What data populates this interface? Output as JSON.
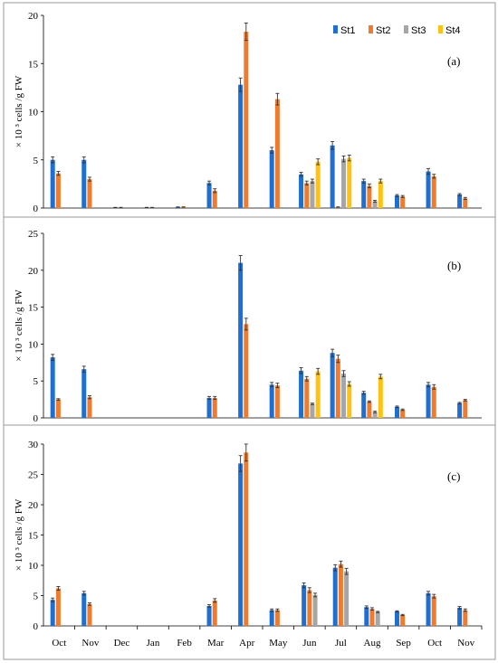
{
  "colors": {
    "St1": "#1f6fd1",
    "St2": "#f07b2c",
    "St3": "#a6a6a6",
    "St4": "#ffc20e"
  },
  "chart_data": [
    {
      "type": "bar",
      "panel": "(a)",
      "ylabel": "× 10 ³ cells /g FW",
      "ylim": [
        0,
        20
      ],
      "yticks": [
        0,
        5,
        10,
        15,
        20
      ],
      "legend": {
        "placement": "top-right",
        "entries": [
          "St1",
          "St2",
          "St3",
          "St4"
        ]
      },
      "categories": [
        "Oct",
        "Nov",
        "Dec",
        "Jan",
        "Feb",
        "Mar",
        "Apr",
        "May",
        "Jun",
        "Jul",
        "Aug",
        "Sep",
        "Oct",
        "Nov"
      ],
      "series": [
        {
          "name": "St1",
          "values": [
            5.0,
            5.0,
            0.05,
            0.05,
            0.1,
            2.6,
            12.8,
            6.0,
            3.5,
            6.5,
            2.8,
            1.3,
            3.8,
            1.4
          ],
          "errors": [
            0.3,
            0.3,
            0.02,
            0.02,
            0.02,
            0.2,
            0.7,
            0.3,
            0.2,
            0.4,
            0.2,
            0.1,
            0.3,
            0.1
          ]
        },
        {
          "name": "St2",
          "values": [
            3.6,
            3.0,
            0.05,
            0.05,
            0.1,
            1.8,
            18.3,
            11.3,
            2.6,
            0.1,
            2.3,
            1.2,
            3.3,
            1.0
          ],
          "errors": [
            0.2,
            0.2,
            0.02,
            0.02,
            0.02,
            0.2,
            0.9,
            0.6,
            0.2,
            0.02,
            0.2,
            0.1,
            0.2,
            0.1
          ]
        },
        {
          "name": "St3",
          "values": [
            null,
            null,
            null,
            null,
            null,
            null,
            null,
            null,
            2.8,
            5.1,
            0.7,
            null,
            null,
            null
          ],
          "errors": [
            0,
            0,
            0,
            0,
            0,
            0,
            0,
            0,
            0.2,
            0.3,
            0.1,
            0,
            0,
            0
          ]
        },
        {
          "name": "St4",
          "values": [
            null,
            null,
            null,
            null,
            null,
            null,
            null,
            null,
            4.8,
            5.2,
            2.8,
            null,
            null,
            null
          ],
          "errors": [
            0,
            0,
            0,
            0,
            0,
            0,
            0,
            0,
            0.3,
            0.3,
            0.2,
            0,
            0,
            0
          ]
        }
      ]
    },
    {
      "type": "bar",
      "panel": "(b)",
      "ylabel": "× 10 ³ cells /g FW",
      "ylim": [
        0,
        25
      ],
      "yticks": [
        0,
        5,
        10,
        15,
        20,
        25
      ],
      "categories": [
        "Oct",
        "Nov",
        "Dec",
        "Jan",
        "Feb",
        "Mar",
        "Apr",
        "May",
        "Jun",
        "Jul",
        "Aug",
        "Sep",
        "Oct",
        "Nov"
      ],
      "series": [
        {
          "name": "St1",
          "values": [
            8.2,
            6.6,
            null,
            null,
            null,
            2.7,
            21.0,
            4.5,
            6.4,
            8.8,
            3.4,
            1.5,
            4.5,
            2.0
          ],
          "errors": [
            0.4,
            0.4,
            0,
            0,
            0,
            0.2,
            1.0,
            0.3,
            0.4,
            0.5,
            0.2,
            0.1,
            0.3,
            0.1
          ]
        },
        {
          "name": "St2",
          "values": [
            2.5,
            2.8,
            null,
            null,
            null,
            2.7,
            12.7,
            4.4,
            5.3,
            8.0,
            2.2,
            1.1,
            4.2,
            2.4
          ],
          "errors": [
            0.1,
            0.2,
            0,
            0,
            0,
            0.2,
            0.8,
            0.3,
            0.3,
            0.5,
            0.1,
            0.1,
            0.3,
            0.1
          ]
        },
        {
          "name": "St3",
          "values": [
            null,
            null,
            null,
            null,
            null,
            null,
            null,
            null,
            1.9,
            6.0,
            0.8,
            null,
            null,
            null
          ],
          "errors": [
            0,
            0,
            0,
            0,
            0,
            0,
            0,
            0,
            0.1,
            0.4,
            0.1,
            0,
            0,
            0
          ]
        },
        {
          "name": "St4",
          "values": [
            null,
            null,
            null,
            null,
            null,
            null,
            null,
            null,
            6.3,
            4.6,
            5.6,
            null,
            null,
            null
          ],
          "errors": [
            0,
            0,
            0,
            0,
            0,
            0,
            0,
            0,
            0.4,
            0.3,
            0.3,
            0,
            0,
            0
          ]
        }
      ]
    },
    {
      "type": "bar",
      "panel": "(c)",
      "ylabel": "× 10 ³ cells /g FW",
      "ylim": [
        0,
        30
      ],
      "yticks": [
        0,
        5,
        10,
        15,
        20,
        25,
        30
      ],
      "categories": [
        "Oct",
        "Nov",
        "Dec",
        "Jan",
        "Feb",
        "Mar",
        "Apr",
        "May",
        "Jun",
        "Jul",
        "Aug",
        "Sep",
        "Oct",
        "Nov"
      ],
      "series": [
        {
          "name": "St1",
          "values": [
            4.3,
            5.4,
            null,
            null,
            null,
            3.3,
            26.8,
            2.6,
            6.7,
            9.6,
            3.1,
            2.4,
            5.4,
            3.0
          ],
          "errors": [
            0.3,
            0.3,
            0,
            0,
            0,
            0.2,
            1.3,
            0.2,
            0.4,
            0.5,
            0.2,
            0.1,
            0.3,
            0.2
          ]
        },
        {
          "name": "St2",
          "values": [
            6.2,
            3.6,
            null,
            null,
            null,
            4.2,
            28.6,
            2.6,
            5.9,
            10.2,
            2.8,
            1.8,
            4.9,
            2.6
          ],
          "errors": [
            0.3,
            0.2,
            0,
            0,
            0,
            0.3,
            1.4,
            0.2,
            0.4,
            0.5,
            0.2,
            0.1,
            0.3,
            0.2
          ]
        },
        {
          "name": "St3",
          "values": [
            null,
            null,
            null,
            null,
            null,
            null,
            null,
            null,
            5.1,
            9.0,
            2.3,
            null,
            null,
            null
          ],
          "errors": [
            0,
            0,
            0,
            0,
            0,
            0,
            0,
            0,
            0.3,
            0.5,
            0.1,
            0,
            0,
            0
          ]
        },
        {
          "name": "St4",
          "values": [
            null,
            null,
            null,
            null,
            null,
            null,
            null,
            null,
            null,
            null,
            null,
            null,
            null,
            null
          ],
          "errors": [
            0,
            0,
            0,
            0,
            0,
            0,
            0,
            0,
            0,
            0,
            0,
            0,
            0,
            0
          ]
        }
      ]
    }
  ]
}
